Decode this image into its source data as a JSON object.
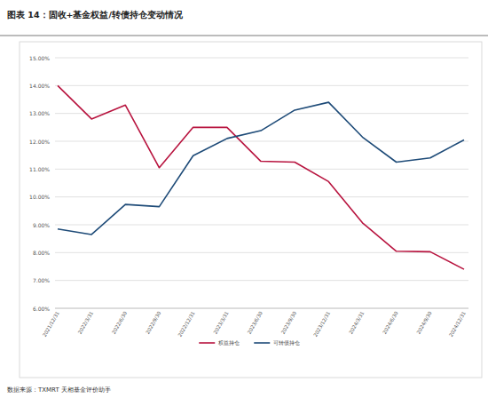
{
  "chart_data": {
    "type": "line",
    "title": "图表 14：固收+基金权益/转债持仓变动情况",
    "source": "数据来源：TXMRT 天相基金评价助手",
    "categories": [
      "2021/12/31",
      "2022/3/31",
      "2022/6/30",
      "2022/9/30",
      "2022/12/31",
      "2023/3/31",
      "2023/6/30",
      "2023/9/30",
      "2023/12/31",
      "2024/3/31",
      "2024/6/30",
      "2024/9/30",
      "2024/12/31"
    ],
    "series": [
      {
        "name": "权益持仓",
        "color": "#b8143f",
        "values": [
          14.0,
          12.8,
          13.3,
          11.05,
          12.5,
          12.5,
          11.28,
          11.25,
          10.55,
          9.07,
          8.05,
          8.03,
          7.4
        ]
      },
      {
        "name": "可转债持仓",
        "color": "#1e4b78",
        "values": [
          8.85,
          8.65,
          9.73,
          9.65,
          11.48,
          12.1,
          12.38,
          13.12,
          13.4,
          12.15,
          11.25,
          11.4,
          12.05
        ]
      }
    ],
    "ylim": [
      6,
      15
    ],
    "yticks": [
      {
        "value": 6,
        "label": "6.00%"
      },
      {
        "value": 7,
        "label": "7.00%"
      },
      {
        "value": 8,
        "label": "8.00%"
      },
      {
        "value": 9,
        "label": "9.00%"
      },
      {
        "value": 10,
        "label": "10.00%"
      },
      {
        "value": 11,
        "label": "11.00%"
      },
      {
        "value": 12,
        "label": "12.00%"
      },
      {
        "value": 13,
        "label": "13.00%"
      },
      {
        "value": 14,
        "label": "14.00%"
      },
      {
        "value": 15,
        "label": "15.00%"
      }
    ],
    "grid": true,
    "legend": "bottom"
  }
}
